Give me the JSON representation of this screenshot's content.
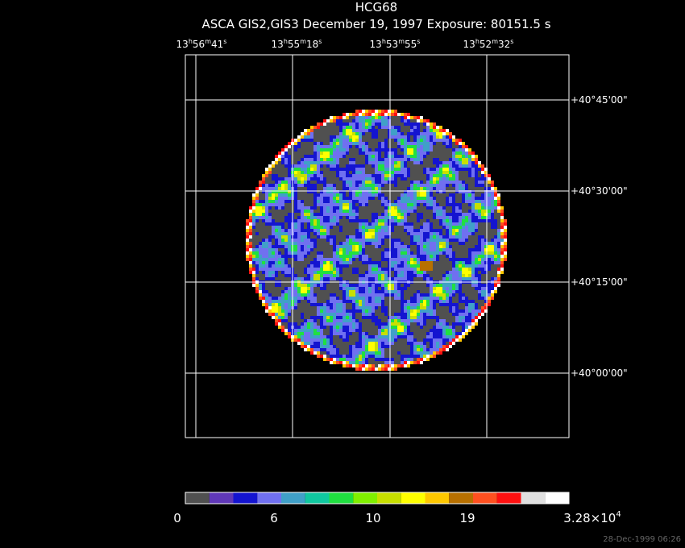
{
  "title": "HCG68",
  "subtitle": "ASCA GIS2,GIS3 December 19, 1997 Exposure: 80151.5 s",
  "ra_labels": [
    [
      "13",
      "h",
      "56",
      "m",
      "41",
      "s"
    ],
    [
      "13",
      "h",
      "55",
      "m",
      "18",
      "s"
    ],
    [
      "13",
      "h",
      "53",
      "m",
      "55",
      "s"
    ],
    [
      "13",
      "h",
      "52",
      "m",
      "32",
      "s"
    ]
  ],
  "dec_labels": [
    "+40°45'00\"",
    "+40°30'00\"",
    "+40°15'00\"",
    "+40°00'00\""
  ],
  "colorbar": {
    "colors": [
      "#505050",
      "#6038b8",
      "#1414d0",
      "#7070f0",
      "#40a0c8",
      "#10c8a0",
      "#20e040",
      "#80f000",
      "#c8e000",
      "#ffff00",
      "#ffc800",
      "#b87000",
      "#ff5020",
      "#ff1010",
      "#e0e0e0",
      "#ffffff"
    ],
    "labels": [
      [
        "0"
      ],
      [
        "6"
      ],
      [
        "10"
      ],
      [
        "19"
      ],
      [
        "3.28×10",
        "4"
      ]
    ]
  },
  "timestamp": "28-Dec-1999 06:26"
}
